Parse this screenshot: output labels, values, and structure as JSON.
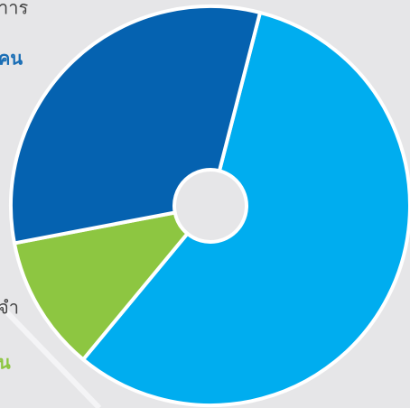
{
  "chart_data": {
    "type": "pie",
    "donut": true,
    "categories": [
      null,
      null,
      null
    ],
    "values": [
      57,
      11,
      32
    ],
    "colors": [
      "#00adef",
      "#8dc641",
      "#0562b0"
    ],
    "annotations": [
      {
        "text": "าาร",
        "color": "#444444",
        "bold": false
      },
      {
        "text": "คน",
        "color": "#1a6eb5",
        "bold": true
      },
      {
        "text": "จำ",
        "color": "#444444",
        "bold": false
      },
      {
        "text": "น",
        "color": "#8dc641",
        "bold": true
      }
    ]
  }
}
